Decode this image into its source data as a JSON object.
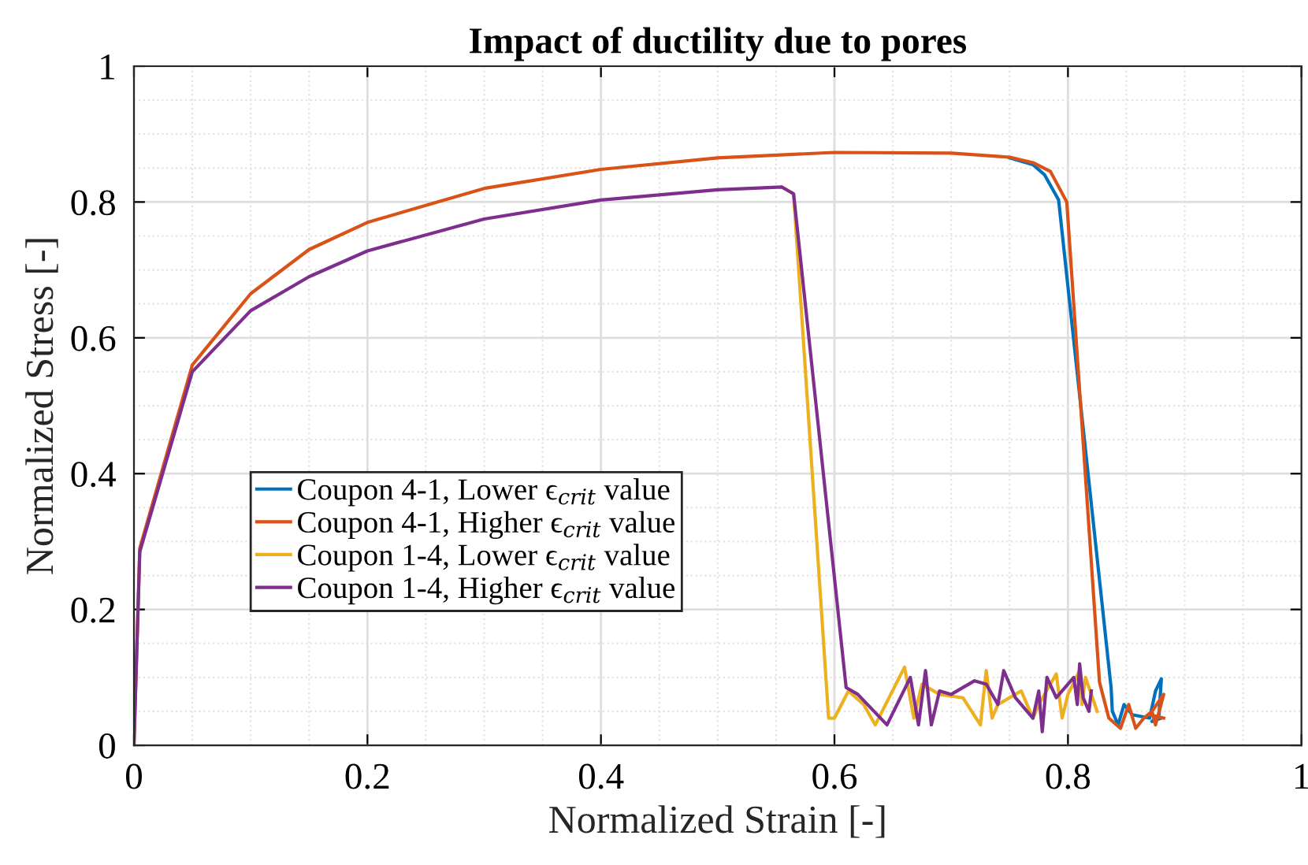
{
  "chart_data": {
    "type": "line",
    "title": "Impact of ductility due to pores",
    "xlabel": "Normalized Strain [-]",
    "ylabel": "Normalized Stress [-]",
    "xlim": [
      0,
      1
    ],
    "ylim": [
      0,
      1
    ],
    "xticks": [
      0,
      0.2,
      0.4,
      0.6,
      0.8,
      1
    ],
    "yticks": [
      0,
      0.2,
      0.4,
      0.6,
      0.8,
      1
    ],
    "grid": true,
    "legend": "left",
    "line_style": "solid",
    "marker": "none",
    "series": [
      {
        "name": "Coupon 4-1, Lower ϵ$_{crit}$ value",
        "color": "#0072bd",
        "x": [
          0.75,
          0.77,
          0.78,
          0.792,
          0.837,
          0.838,
          0.843,
          0.848,
          0.855,
          0.87,
          0.875,
          0.88,
          0.878,
          0.872,
          0.88
        ],
        "values": [
          0.865,
          0.855,
          0.84,
          0.803,
          0.084,
          0.05,
          0.03,
          0.06,
          0.045,
          0.04,
          0.08,
          0.098,
          0.045,
          0.035,
          0.04
        ]
      },
      {
        "name": "Coupon 4-1, Higher ϵ$_{crit}$ value",
        "color": "#d95319",
        "x": [
          0,
          0.005,
          0.05,
          0.1,
          0.15,
          0.2,
          0.3,
          0.4,
          0.5,
          0.6,
          0.7,
          0.75,
          0.77,
          0.785,
          0.799,
          0.827,
          0.835,
          0.845,
          0.852,
          0.858,
          0.865,
          0.872,
          0.875,
          0.882,
          0.87,
          0.882
        ],
        "values": [
          0,
          0.29,
          0.56,
          0.665,
          0.73,
          0.77,
          0.82,
          0.848,
          0.865,
          0.873,
          0.872,
          0.866,
          0.858,
          0.845,
          0.8,
          0.093,
          0.04,
          0.025,
          0.06,
          0.025,
          0.04,
          0.05,
          0.03,
          0.075,
          0.045,
          0.04
        ]
      },
      {
        "name": "Coupon 1-4, Lower ϵ$_{crit}$ value",
        "color": "#edb120",
        "x": [
          0.555,
          0.565,
          0.595,
          0.6,
          0.612,
          0.625,
          0.635,
          0.66,
          0.668,
          0.675,
          0.69,
          0.71,
          0.725,
          0.73,
          0.735,
          0.74,
          0.76,
          0.77,
          0.775,
          0.79,
          0.795,
          0.8,
          0.81,
          0.812,
          0.815,
          0.82,
          0.825
        ],
        "values": [
          0.822,
          0.812,
          0.04,
          0.04,
          0.08,
          0.06,
          0.03,
          0.115,
          0.04,
          0.09,
          0.075,
          0.07,
          0.03,
          0.11,
          0.04,
          0.06,
          0.08,
          0.04,
          0.06,
          0.105,
          0.04,
          0.075,
          0.11,
          0.06,
          0.1,
          0.075,
          0.05
        ]
      },
      {
        "name": "Coupon 1-4, Higher ϵ$_{crit}$ value",
        "color": "#7e2f8e",
        "x": [
          0,
          0.005,
          0.05,
          0.1,
          0.15,
          0.2,
          0.3,
          0.4,
          0.5,
          0.555,
          0.565,
          0.61,
          0.62,
          0.645,
          0.665,
          0.672,
          0.678,
          0.683,
          0.69,
          0.7,
          0.72,
          0.73,
          0.74,
          0.745,
          0.755,
          0.77,
          0.775,
          0.778,
          0.782,
          0.79,
          0.8,
          0.805,
          0.808,
          0.81,
          0.813,
          0.818,
          0.82
        ],
        "values": [
          0,
          0.285,
          0.55,
          0.64,
          0.69,
          0.728,
          0.775,
          0.803,
          0.818,
          0.822,
          0.812,
          0.085,
          0.075,
          0.03,
          0.1,
          0.03,
          0.11,
          0.03,
          0.08,
          0.075,
          0.095,
          0.09,
          0.06,
          0.11,
          0.07,
          0.04,
          0.08,
          0.02,
          0.1,
          0.07,
          0.09,
          0.1,
          0.06,
          0.12,
          0.07,
          0.05,
          0.08
        ]
      }
    ]
  }
}
